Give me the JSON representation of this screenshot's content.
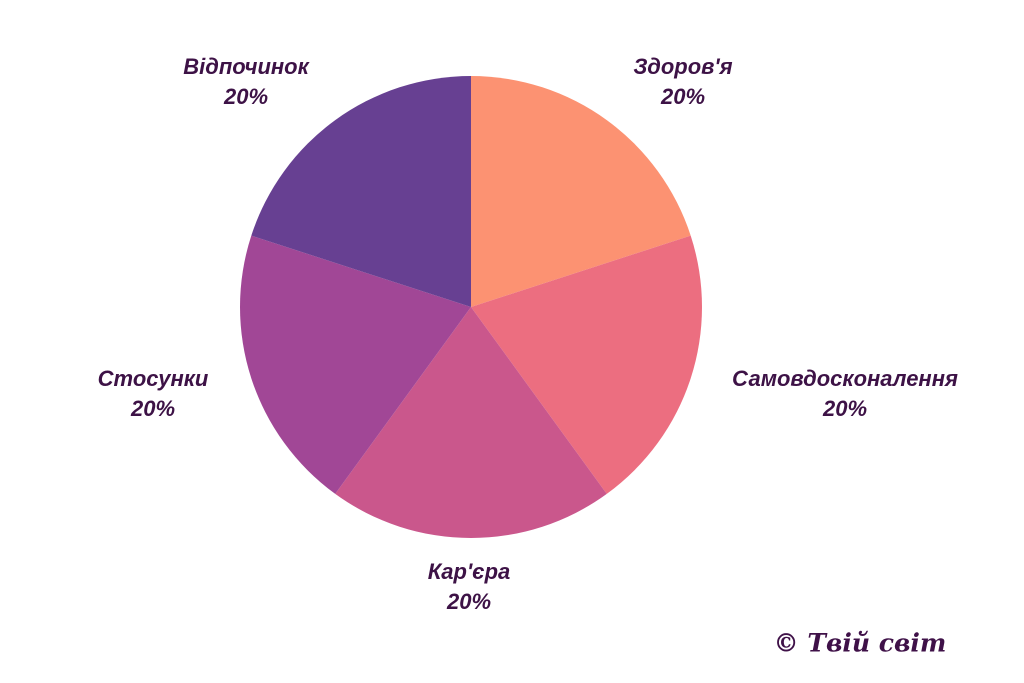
{
  "chart_data": {
    "type": "pie",
    "title": "",
    "legend": "none",
    "labels_position": "outside",
    "start_angle_deg": 0,
    "direction": "clockwise",
    "slices": [
      {
        "label": "Здоров'я",
        "value": 20,
        "pct_label": "20%",
        "color": "#FC9272"
      },
      {
        "label": "Самовдосконалення",
        "value": 20,
        "pct_label": "20%",
        "color": "#EC6E80"
      },
      {
        "label": "Кар'єра",
        "value": 20,
        "pct_label": "20%",
        "color": "#CA578C"
      },
      {
        "label": "Стосунки",
        "value": 20,
        "pct_label": "20%",
        "color": "#A14796"
      },
      {
        "label": "Відпочинок",
        "value": 20,
        "pct_label": "20%",
        "color": "#674092"
      }
    ]
  },
  "watermark": {
    "text": "© Твій світ"
  },
  "colors": {
    "background": "#FFFFFF",
    "label_text": "#3D1246",
    "watermark_text": "#3F1148"
  }
}
